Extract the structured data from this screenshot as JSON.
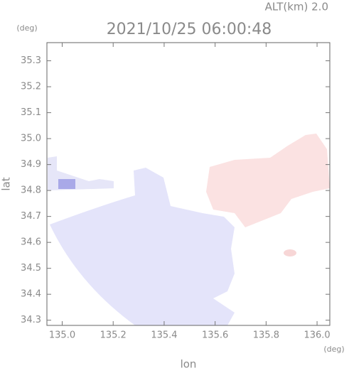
{
  "chart_data": {
    "type": "map",
    "title": "2021/10/25 06:00:48",
    "subtitle": "ALT(km) 2.0",
    "xlabel": "lon",
    "xunit": "(deg)",
    "ylabel": "lat",
    "yunit": "(deg)",
    "xlim": [
      134.94,
      136.05
    ],
    "ylim": [
      34.28,
      35.37
    ],
    "xticks": [
      {
        "value": 135,
        "label": "135.0"
      },
      135.2,
      135.4,
      135.6,
      135.8,
      {
        "value": 136,
        "label": "136.0"
      }
    ],
    "yticks": [
      34.3,
      34.4,
      34.5,
      34.6,
      34.7,
      34.8,
      34.9,
      {
        "value": 35,
        "label": "35.0"
      },
      35.1,
      35.2,
      35.3
    ]
  }
}
